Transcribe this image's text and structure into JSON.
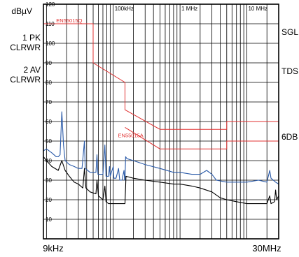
{
  "chart_data": {
    "type": "line",
    "title": "",
    "ylabel": "dBµV",
    "xlabel": "",
    "xscale": "log",
    "xlim": [
      9,
      30000
    ],
    "ylim": [
      0,
      120
    ],
    "grid": true,
    "x_start_label": "9kHz",
    "x_end_label": "30MHz",
    "x_top_ticks": [
      {
        "x": 100,
        "label": "100kHz"
      },
      {
        "x": 1000,
        "label": "1 MHz"
      },
      {
        "x": 10000,
        "label": "10 MHz"
      }
    ],
    "y_ticks": [
      120,
      110,
      100,
      90,
      80,
      70,
      60,
      50,
      40,
      30,
      20,
      10
    ],
    "left_labels": [
      {
        "line1": "1 PK",
        "line2": "CLRWR"
      },
      {
        "line1": "2 AV",
        "line2": "CLRWR"
      }
    ],
    "right_labels": [
      "SGL",
      "TDS",
      "6DB"
    ],
    "limit_lines": [
      {
        "name": "EN55015Q",
        "points": [
          [
            9,
            110
          ],
          [
            50,
            110
          ],
          [
            50,
            90
          ],
          [
            150,
            80
          ],
          [
            150,
            66
          ],
          [
            500,
            56
          ],
          [
            5000,
            56
          ],
          [
            5000,
            60
          ],
          [
            30000,
            60
          ]
        ]
      },
      {
        "name": "EN55015A",
        "points": [
          [
            150,
            57
          ],
          [
            500,
            46
          ],
          [
            5000,
            46
          ],
          [
            5000,
            50
          ],
          [
            30000,
            50
          ]
        ]
      }
    ],
    "series": [
      {
        "color": "#2a5aa8",
        "points": [
          [
            9,
            45
          ],
          [
            10,
            46
          ],
          [
            12,
            44
          ],
          [
            14,
            42
          ],
          [
            15,
            42
          ],
          [
            16,
            43
          ],
          [
            17,
            65
          ],
          [
            18,
            48
          ],
          [
            19,
            40
          ],
          [
            22,
            38
          ],
          [
            26,
            37
          ],
          [
            30,
            36
          ],
          [
            34,
            36
          ],
          [
            37,
            50
          ],
          [
            38,
            36
          ],
          [
            45,
            34
          ],
          [
            55,
            34
          ],
          [
            57,
            43
          ],
          [
            59,
            33
          ],
          [
            70,
            33
          ],
          [
            75,
            48
          ],
          [
            78,
            32
          ],
          [
            85,
            32
          ],
          [
            88,
            37
          ],
          [
            90,
            32
          ],
          [
            100,
            37
          ],
          [
            102,
            31
          ],
          [
            110,
            31
          ],
          [
            120,
            36
          ],
          [
            125,
            30
          ],
          [
            135,
            30
          ],
          [
            145,
            35
          ],
          [
            148,
            30
          ],
          [
            150,
            30
          ],
          [
            153,
            42
          ],
          [
            160,
            41
          ],
          [
            200,
            40
          ],
          [
            300,
            38
          ],
          [
            500,
            36
          ],
          [
            800,
            34
          ],
          [
            1000,
            34
          ],
          [
            1500,
            33
          ],
          [
            2000,
            33
          ],
          [
            2500,
            35
          ],
          [
            3000,
            33
          ],
          [
            3500,
            30
          ],
          [
            5000,
            29
          ],
          [
            10000,
            29
          ],
          [
            15000,
            30
          ],
          [
            20000,
            29
          ],
          [
            22000,
            35
          ],
          [
            23000,
            31
          ],
          [
            27000,
            29
          ],
          [
            30000,
            28
          ]
        ]
      },
      {
        "color": "#000000",
        "points": [
          [
            9,
            42
          ],
          [
            10,
            40
          ],
          [
            12,
            37
          ],
          [
            15,
            35
          ],
          [
            17,
            40
          ],
          [
            19,
            35
          ],
          [
            22,
            32
          ],
          [
            26,
            29
          ],
          [
            30,
            28
          ],
          [
            35,
            26
          ],
          [
            37,
            36
          ],
          [
            39,
            26
          ],
          [
            45,
            24
          ],
          [
            55,
            23
          ],
          [
            57,
            30
          ],
          [
            60,
            22
          ],
          [
            70,
            20
          ],
          [
            75,
            27
          ],
          [
            78,
            19
          ],
          [
            85,
            18
          ],
          [
            100,
            18
          ],
          [
            120,
            18
          ],
          [
            140,
            18
          ],
          [
            150,
            18
          ],
          [
            155,
            32
          ],
          [
            200,
            31
          ],
          [
            300,
            30
          ],
          [
            500,
            29
          ],
          [
            800,
            28
          ],
          [
            1000,
            28
          ],
          [
            1500,
            27
          ],
          [
            2000,
            26
          ],
          [
            3000,
            24
          ],
          [
            4000,
            21
          ],
          [
            5000,
            20
          ],
          [
            7000,
            19
          ],
          [
            10000,
            18
          ],
          [
            15000,
            18
          ],
          [
            20000,
            18
          ],
          [
            22000,
            22
          ],
          [
            23000,
            18
          ],
          [
            26000,
            19
          ],
          [
            27000,
            25
          ],
          [
            28000,
            20
          ],
          [
            30000,
            22
          ]
        ]
      }
    ]
  }
}
